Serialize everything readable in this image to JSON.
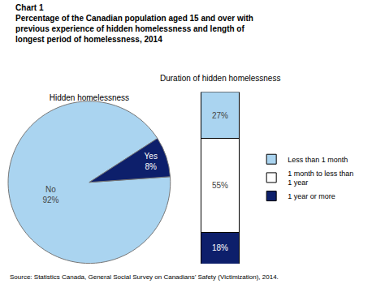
{
  "title": "Chart 1",
  "subtitle": "Percentage of the Canadian population aged 15 and over with\nprevious experience of hidden homelessness and length of\nlongest period of homelessness, 2014",
  "annotations": [
    "Source: Statistics Canada, General Social Survey on Canadians’ Safety (Victimization), 2014."
  ],
  "chart_data": [
    {
      "type": "pie",
      "title": "Hidden homelessness",
      "categories": [
        "No",
        "Yes"
      ],
      "values": [
        92,
        8
      ],
      "value_labels": [
        "92%",
        "8%"
      ],
      "colors": [
        "#aad4f0",
        "#0d1f6b"
      ],
      "data_labels": true
    },
    {
      "type": "bar",
      "title": "Duration of hidden homelessness",
      "categories": [
        null
      ],
      "stacked": true,
      "data_labels": true,
      "tick_labels": false,
      "legend": "right",
      "ylim": [
        0,
        100
      ],
      "series": [
        {
          "name": "1 year or more",
          "color": "#0d1f6b",
          "values": [
            18
          ],
          "value_labels": [
            "18%"
          ]
        },
        {
          "name": "1 month to less than\n1 year",
          "color": "#ffffff",
          "values": [
            55
          ],
          "value_labels": [
            "55%"
          ]
        },
        {
          "name": "Less than 1 month",
          "color": "#aad4f0",
          "values": [
            27
          ],
          "value_labels": [
            "27%"
          ]
        }
      ]
    }
  ]
}
